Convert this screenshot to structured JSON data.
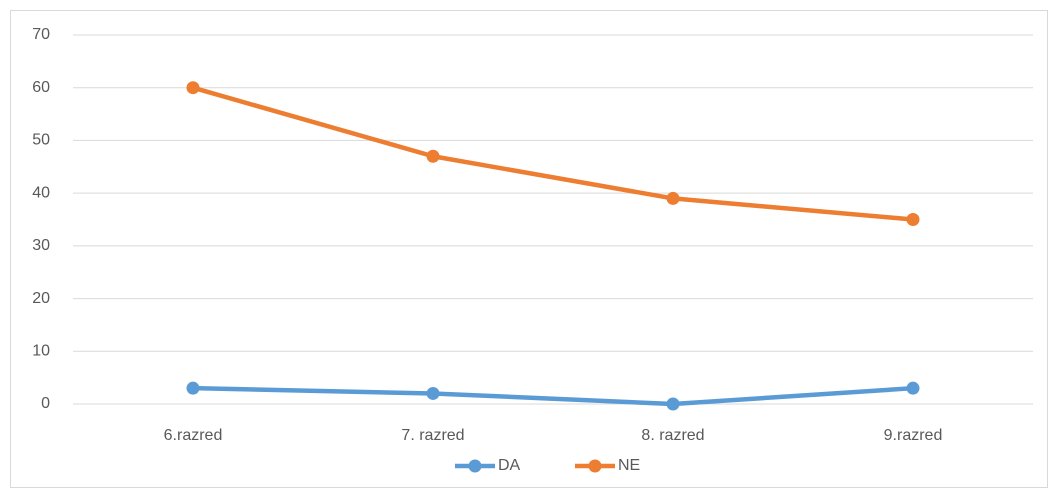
{
  "chart_data": {
    "type": "line",
    "categories": [
      "6.razred",
      "7. razred",
      "8. razred",
      "9.razred"
    ],
    "series": [
      {
        "name": "DA",
        "color": "#5b9bd5",
        "values": [
          3,
          2,
          0,
          3
        ]
      },
      {
        "name": "NE",
        "color": "#ed7d31",
        "values": [
          60,
          47,
          39,
          35
        ]
      }
    ],
    "ylim": [
      0,
      70
    ],
    "yticks": [
      0,
      10,
      20,
      30,
      40,
      50,
      60,
      70
    ],
    "grid": true,
    "legend": "bottom"
  }
}
